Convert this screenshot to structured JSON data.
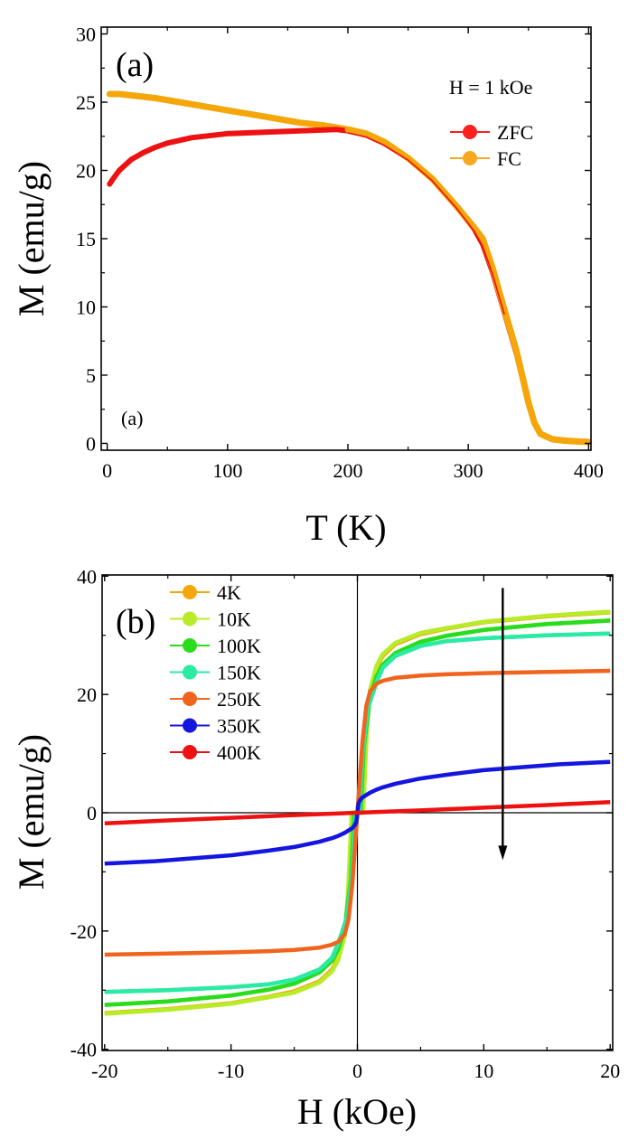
{
  "chart_data": [
    {
      "id": "panel-a",
      "type": "line",
      "panel_label": "(a)",
      "inner_label": "(a)",
      "annotation": "H = 1 kOe",
      "xlabel": "T (K)",
      "ylabel": "M (emu/g)",
      "xlim": [
        -5,
        402
      ],
      "ylim": [
        -0.5,
        30.5
      ],
      "xticks": [
        0,
        100,
        200,
        300,
        400
      ],
      "xtick_labels": [
        "0",
        "100",
        "200",
        "300",
        "400"
      ],
      "yticks": [
        0,
        5,
        10,
        15,
        20,
        25,
        30
      ],
      "ytick_labels": [
        "0",
        "5",
        "10",
        "15",
        "20",
        "25",
        "30"
      ],
      "legend_position": "upper-right",
      "series": [
        {
          "name": "ZFC",
          "color": "#ee1111",
          "marker_color": "#ff2020",
          "x": [
            2,
            5,
            10,
            20,
            30,
            40,
            50,
            70,
            100,
            130,
            160,
            190,
            200,
            215,
            230,
            250,
            270,
            290,
            305,
            312,
            320,
            330,
            340,
            350,
            355,
            360,
            370,
            380,
            390,
            400
          ],
          "y": [
            19.0,
            19.4,
            20.0,
            20.8,
            21.3,
            21.7,
            22.0,
            22.4,
            22.7,
            22.8,
            22.9,
            23.0,
            22.9,
            22.6,
            22.0,
            20.9,
            19.4,
            17.4,
            15.7,
            14.6,
            12.6,
            9.6,
            6.6,
            3.0,
            1.5,
            0.7,
            0.3,
            0.2,
            0.15,
            0.1
          ]
        },
        {
          "name": "FC",
          "color": "#f5a60a",
          "marker_color": "#f7a820",
          "x": [
            2,
            10,
            20,
            40,
            60,
            80,
            100,
            120,
            140,
            160,
            180,
            200,
            215,
            230,
            250,
            270,
            290,
            305,
            312,
            320,
            330,
            340,
            350,
            355,
            360,
            370,
            380,
            390,
            400
          ],
          "y": [
            25.6,
            25.6,
            25.5,
            25.3,
            25.0,
            24.7,
            24.4,
            24.1,
            23.8,
            23.5,
            23.3,
            23.0,
            22.7,
            22.1,
            20.9,
            19.4,
            17.4,
            15.8,
            15.0,
            12.9,
            9.8,
            6.8,
            3.0,
            1.5,
            0.7,
            0.3,
            0.2,
            0.15,
            0.1
          ]
        }
      ]
    },
    {
      "id": "panel-b",
      "type": "line",
      "panel_label": "(b)",
      "xlabel": "H (kOe)",
      "ylabel": "M (emu/g)",
      "xlim": [
        -20.2,
        20.2
      ],
      "ylim": [
        -40.2,
        40.2
      ],
      "xticks": [
        -20,
        -10,
        0,
        10,
        20
      ],
      "xtick_labels": [
        "-20",
        "-10",
        "0",
        "10",
        "20"
      ],
      "yticks": [
        -40,
        -20,
        0,
        20,
        40
      ],
      "ytick_labels": [
        "-40",
        "-20",
        "0",
        "20",
        "40"
      ],
      "legend_position": "upper-left",
      "arrow": {
        "x": 11.5,
        "y_from": 38,
        "y_to": -8
      },
      "series": [
        {
          "name": "4K",
          "color": "#f5a60a",
          "hysteresis": true,
          "x": [
            0.4,
            0.7,
            1,
            1.5,
            2,
            3,
            5,
            7,
            10,
            15,
            20
          ],
          "y": [
            0,
            13,
            20.5,
            24.5,
            26.5,
            28.5,
            30.2,
            31.1,
            32.2,
            33.2,
            33.9
          ]
        },
        {
          "name": "10K",
          "color": "#b8ec28",
          "hysteresis": true,
          "x": [
            0.45,
            0.75,
            1,
            1.5,
            2,
            3,
            5,
            7,
            10,
            15,
            20
          ],
          "y": [
            0,
            14,
            20.8,
            24.8,
            26.8,
            28.7,
            30.4,
            31.2,
            32.3,
            33.3,
            34.0
          ]
        },
        {
          "name": "100K",
          "color": "#2bdc1c",
          "hysteresis": true,
          "x": [
            0.25,
            0.5,
            1,
            1.5,
            2,
            3,
            5,
            7,
            10,
            15,
            20
          ],
          "y": [
            0,
            11,
            19.5,
            23,
            25,
            27,
            28.9,
            29.9,
            30.9,
            31.9,
            32.5
          ]
        },
        {
          "name": "150K",
          "color": "#2aeaa4",
          "hysteresis": true,
          "x": [
            0.15,
            0.4,
            0.8,
            1.5,
            2,
            3,
            5,
            7,
            10,
            15,
            20
          ],
          "y": [
            0,
            10,
            17.5,
            22,
            24.5,
            26.5,
            28.2,
            29,
            29.5,
            30.0,
            30.3
          ]
        },
        {
          "name": "250K",
          "color": "#f0641e",
          "hysteresis": false,
          "x": [
            0,
            0.2,
            0.4,
            0.7,
            1,
            1.5,
            2,
            3,
            5,
            7,
            10,
            15,
            20
          ],
          "y": [
            0,
            6,
            12,
            18,
            20.5,
            21.8,
            22.3,
            22.8,
            23.2,
            23.4,
            23.6,
            23.8,
            24.0
          ]
        },
        {
          "name": "350K",
          "color": "#1515e0",
          "hysteresis": false,
          "x": [
            0,
            0.05,
            0.1,
            0.2,
            0.4,
            0.7,
            1,
            1.5,
            2,
            3,
            5,
            7,
            10,
            13,
            16,
            20
          ],
          "y": [
            0,
            1,
            1.6,
            2.1,
            2.6,
            3.0,
            3.4,
            3.9,
            4.3,
            4.9,
            5.8,
            6.4,
            7.2,
            7.7,
            8.2,
            8.6
          ]
        },
        {
          "name": "400K",
          "color": "#ee1111",
          "hysteresis": false,
          "x": [
            0,
            5,
            10,
            15,
            20
          ],
          "y": [
            0,
            0.4,
            0.85,
            1.3,
            1.8
          ]
        }
      ]
    }
  ]
}
